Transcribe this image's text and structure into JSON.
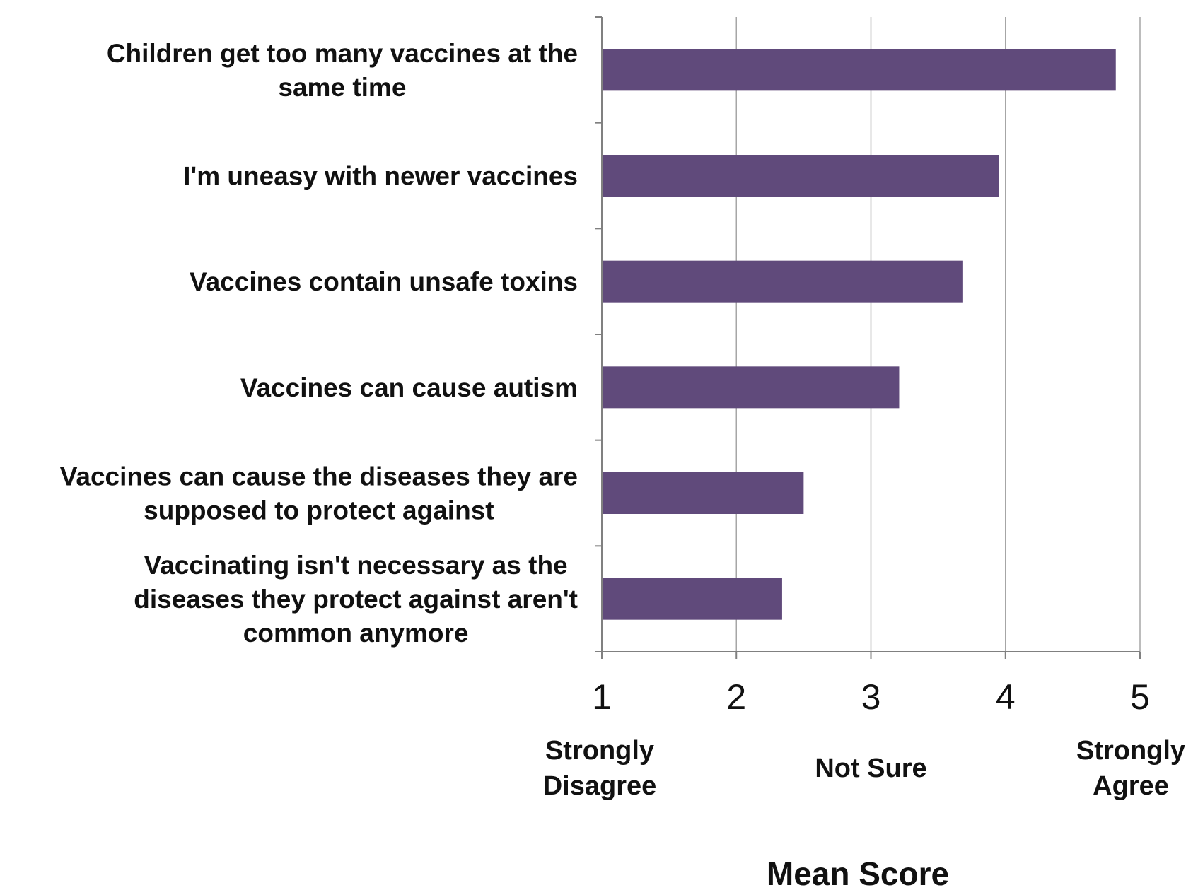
{
  "chart_data": {
    "type": "bar",
    "orientation": "horizontal",
    "categories": [
      [
        "Children get too many vaccines at the",
        "same time"
      ],
      [
        "I'm uneasy with newer vaccines"
      ],
      [
        "Vaccines contain unsafe toxins"
      ],
      [
        "Vaccines can cause autism"
      ],
      [
        "Vaccines can cause the diseases they are",
        "supposed to protect against"
      ],
      [
        "Vaccinating isn't necessary as the",
        "diseases they protect against aren't",
        "common anymore"
      ]
    ],
    "values": [
      4.82,
      3.95,
      3.68,
      3.21,
      2.5,
      2.34
    ],
    "xlabel": "Mean Score",
    "xlim": [
      1,
      5
    ],
    "xticks": [
      1,
      2,
      3,
      4,
      5
    ],
    "xtick_labels": [
      "1",
      "2",
      "3",
      "4",
      "5"
    ],
    "scale_anchors": [
      {
        "value": 1,
        "lines": [
          "Strongly",
          "Disagree"
        ]
      },
      {
        "value": 3,
        "lines": [
          "Not Sure"
        ]
      },
      {
        "value": 5,
        "lines": [
          "Strongly",
          "Agree"
        ]
      }
    ],
    "grid": "vertical",
    "legend": "none",
    "colors": {
      "bar": "#604a7b",
      "grid": "#a6a6a6",
      "axis": "#808080"
    }
  }
}
